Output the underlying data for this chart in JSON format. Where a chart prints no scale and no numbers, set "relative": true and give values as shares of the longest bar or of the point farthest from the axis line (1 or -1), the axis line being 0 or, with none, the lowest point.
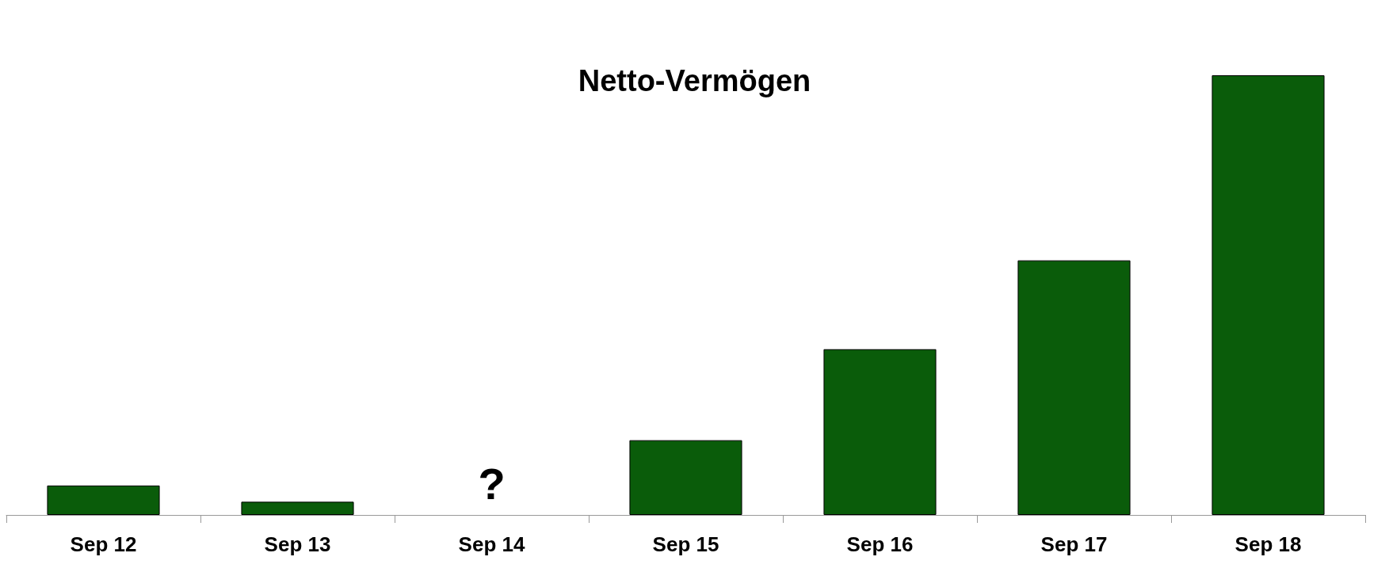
{
  "chart_data": {
    "type": "bar",
    "title": "Netto-Vermögen",
    "relative": true,
    "categories": [
      "Sep 12",
      "Sep 13",
      "Sep 14",
      "Sep 15",
      "Sep 16",
      "Sep 17",
      "Sep 18"
    ],
    "values": [
      0.067,
      0.03,
      null,
      0.17,
      0.377,
      0.579,
      1
    ],
    "color": "#0a5c0a",
    "annotations": [
      "?"
    ],
    "grid": false
  }
}
